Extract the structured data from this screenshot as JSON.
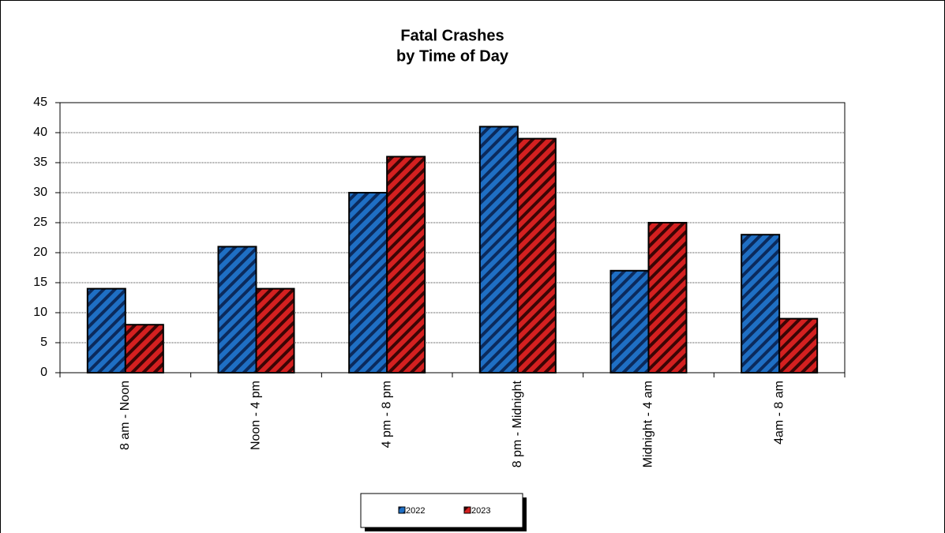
{
  "chart_data": {
    "type": "bar",
    "title": "Fatal Crashes",
    "subtitle": "by Time of Day",
    "categories": [
      "8 am - Noon",
      "Noon - 4 pm",
      "4 pm - 8 pm",
      "8 pm - Midnight",
      "Midnight - 4 am",
      "4am - 8 am"
    ],
    "series": [
      {
        "name": "2022",
        "color": "#1f6fc4",
        "values": [
          14,
          21,
          30,
          41,
          17,
          23
        ]
      },
      {
        "name": "2023",
        "color": "#d42020",
        "values": [
          8,
          14,
          36,
          39,
          25,
          9
        ]
      }
    ],
    "ylim": [
      0,
      45
    ],
    "yticks": [
      0,
      5,
      10,
      15,
      20,
      25,
      30,
      35,
      40,
      45
    ],
    "grid": true,
    "legend": "bottom"
  }
}
